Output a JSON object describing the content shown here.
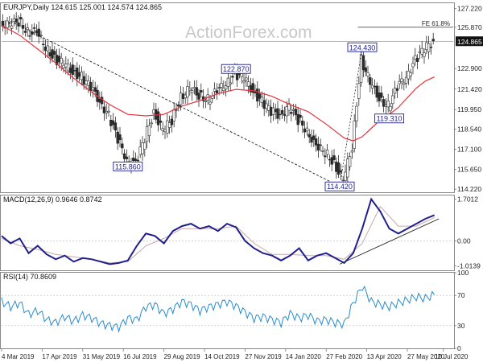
{
  "watermark": "ActionForex.com",
  "colors": {
    "candle": "#2b2b2b",
    "sma": "#e8313b",
    "macd_line": "#1f1f8f",
    "macd_signal": "#c9a6a6",
    "rsi": "#2a8ccf",
    "trendline": "#202020",
    "label_border": "#1f1f8f",
    "label_text": "#1f1f8f",
    "last_price_bg": "#111111",
    "last_price_text": "#ffffff"
  },
  "chart_data": [
    {
      "type": "line",
      "panel": "price",
      "title": "EURJPY,Daily  124.615 125.001 124.574 124.865",
      "ylim": [
        114.0,
        127.6
      ],
      "y_ticks": [
        "127.220",
        "125.870",
        "124.865",
        "122.900",
        "121.420",
        "119.950",
        "118.540",
        "117.100",
        "115.650",
        "114.220"
      ],
      "last_price": "124.865",
      "annotations": [
        {
          "text": "FE 61.8%",
          "y": 125.87
        },
        {
          "text": "124.430",
          "x": 80,
          "y": 124.43
        },
        {
          "text": "122.870",
          "x": 52,
          "y": 122.87
        },
        {
          "text": "119.310",
          "x": 86,
          "y": 119.31
        },
        {
          "text": "115.860",
          "x": 28,
          "y": 115.86
        },
        {
          "text": "114.420",
          "x": 75,
          "y": 114.42
        }
      ],
      "series": [
        {
          "kind": "close",
          "x": [
            0,
            2,
            4,
            6,
            8,
            10,
            12,
            14,
            16,
            18,
            20,
            22,
            24,
            26,
            28,
            30,
            32,
            34,
            36,
            38,
            40,
            42,
            44,
            46,
            48,
            50,
            52,
            54,
            56,
            58,
            60,
            62,
            64,
            66,
            68,
            70,
            72,
            74,
            76,
            78,
            80,
            82,
            84,
            86,
            88,
            90,
            92,
            94,
            96
          ],
          "values": [
            126.2,
            126.0,
            126.3,
            125.6,
            125.4,
            124.5,
            123.6,
            123.2,
            122.7,
            122.3,
            121.5,
            120.6,
            119.5,
            117.8,
            116.4,
            116.0,
            117.9,
            119.8,
            118.4,
            119.2,
            120.9,
            121.4,
            121.0,
            120.7,
            121.2,
            121.9,
            122.5,
            122.2,
            121.3,
            120.5,
            119.8,
            119.6,
            120.1,
            119.2,
            118.5,
            117.2,
            116.9,
            116.1,
            114.8,
            117.3,
            123.6,
            121.8,
            120.8,
            120.2,
            121.5,
            122.4,
            123.5,
            124.3,
            124.9
          ]
        },
        {
          "kind": "sma",
          "x": [
            0,
            4,
            8,
            12,
            16,
            20,
            24,
            28,
            32,
            36,
            40,
            44,
            48,
            52,
            56,
            60,
            64,
            68,
            72,
            76,
            78,
            80,
            82,
            84,
            86,
            88,
            90,
            92,
            94,
            96
          ],
          "values": [
            126.0,
            125.3,
            124.3,
            123.3,
            122.2,
            121.2,
            120.3,
            119.6,
            119.5,
            119.6,
            120.2,
            120.6,
            121.1,
            121.4,
            121.3,
            120.9,
            120.3,
            119.8,
            118.9,
            117.9,
            117.7,
            118.0,
            118.6,
            119.2,
            119.6,
            120.1,
            120.8,
            121.5,
            122.0,
            122.3
          ]
        },
        {
          "kind": "trendline",
          "x": [
            2,
            75
          ],
          "values": [
            126.3,
            114.42
          ]
        }
      ]
    },
    {
      "type": "line",
      "panel": "macd",
      "title": "MACD(12,26,9) 0.9646 0.8742",
      "ylim": [
        -1.2,
        1.85
      ],
      "y_ticks": [
        "1.7012",
        "0.00",
        "-1.0139"
      ],
      "series": [
        {
          "name": "MACD",
          "x": [
            0,
            2,
            4,
            6,
            8,
            10,
            12,
            14,
            16,
            18,
            20,
            22,
            24,
            26,
            28,
            30,
            32,
            34,
            36,
            38,
            40,
            42,
            44,
            46,
            48,
            50,
            52,
            54,
            56,
            58,
            60,
            62,
            64,
            66,
            68,
            70,
            72,
            74,
            76,
            78,
            80,
            82,
            84,
            86,
            88,
            90,
            92,
            94,
            96
          ],
          "values": [
            0.2,
            -0.1,
            0.1,
            -0.5,
            -0.2,
            -0.55,
            -0.75,
            -0.6,
            -0.85,
            -0.7,
            -0.75,
            -0.85,
            -0.95,
            -0.9,
            -0.8,
            -0.2,
            0.3,
            0.2,
            -0.1,
            0.4,
            0.6,
            0.7,
            0.5,
            0.6,
            0.4,
            0.7,
            0.55,
            0.0,
            -0.3,
            -0.5,
            -0.6,
            -0.8,
            -0.6,
            -0.3,
            -0.8,
            -0.6,
            -0.5,
            -0.7,
            -0.9,
            -0.5,
            0.5,
            1.7,
            1.2,
            0.5,
            0.3,
            0.5,
            0.7,
            0.9,
            1.05
          ]
        },
        {
          "name": "Signal",
          "x": [
            0,
            4,
            8,
            12,
            16,
            20,
            24,
            28,
            32,
            36,
            40,
            44,
            48,
            52,
            56,
            60,
            64,
            68,
            72,
            76,
            80,
            84,
            88,
            92,
            96
          ],
          "values": [
            0.1,
            -0.2,
            -0.35,
            -0.55,
            -0.65,
            -0.75,
            -0.9,
            -0.85,
            -0.2,
            0.1,
            0.5,
            0.5,
            0.5,
            0.6,
            -0.1,
            -0.55,
            -0.55,
            -0.6,
            -0.6,
            -0.75,
            -0.1,
            1.4,
            0.6,
            0.6,
            0.95
          ]
        },
        {
          "name": "trendline",
          "x": [
            75,
            97
          ],
          "values": [
            -0.95,
            0.9
          ]
        }
      ]
    },
    {
      "type": "line",
      "panel": "rsi",
      "title": "RSI(14) 70.8609",
      "ylim": [
        0,
        100
      ],
      "y_ticks": [
        "100",
        "70",
        "30",
        "0"
      ],
      "levels": [
        70,
        30
      ],
      "series": [
        {
          "name": "RSI",
          "x": [
            0,
            2,
            4,
            6,
            8,
            10,
            12,
            14,
            16,
            18,
            20,
            22,
            24,
            26,
            28,
            30,
            32,
            34,
            36,
            38,
            40,
            42,
            44,
            46,
            48,
            50,
            52,
            54,
            56,
            58,
            60,
            62,
            64,
            66,
            68,
            70,
            72,
            74,
            76,
            78,
            80,
            82,
            84,
            86,
            88,
            90,
            92,
            94,
            96
          ],
          "values": [
            62,
            55,
            60,
            45,
            50,
            38,
            34,
            42,
            36,
            44,
            40,
            33,
            30,
            28,
            40,
            38,
            55,
            58,
            46,
            52,
            62,
            58,
            50,
            55,
            58,
            62,
            56,
            48,
            40,
            42,
            38,
            34,
            46,
            40,
            44,
            36,
            38,
            34,
            32,
            60,
            82,
            62,
            58,
            55,
            60,
            64,
            68,
            66,
            71
          ]
        }
      ]
    }
  ],
  "x_axis": {
    "labels": [
      "4 Mar 2019",
      "17 Apr 2019",
      "31 May 2019",
      "16 Jul 2019",
      "29 Aug 2019",
      "14 Oct 2019",
      "27 Nov 2019",
      "14 Jan 2020",
      "27 Feb 2020",
      "13 Apr 2020",
      "27 May 2020",
      "10 Jul 2020"
    ],
    "label_x": [
      0,
      9,
      18,
      27,
      36,
      45,
      54,
      63,
      72,
      81,
      90,
      98
    ],
    "range": [
      0,
      100
    ]
  }
}
